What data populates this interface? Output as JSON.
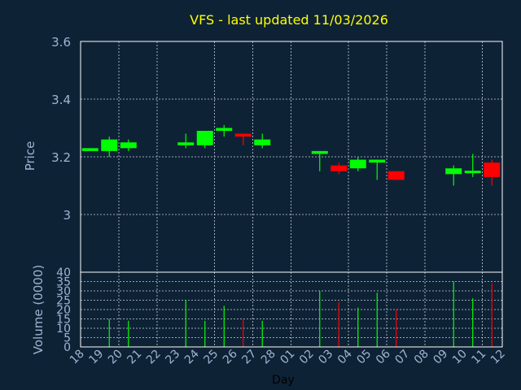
{
  "chart_data": {
    "type": "candlestick",
    "title": "VFS - last updated 11/03/2026",
    "price_panel": {
      "ylabel": "Price",
      "ylim": [
        2.8,
        3.6
      ],
      "yticks": [
        3,
        3.2,
        3.4,
        3.6
      ],
      "ytick_labels": [
        "3",
        "3.2",
        "3.4",
        "3.6"
      ],
      "grid": true
    },
    "volume_panel": {
      "ylabel": "Volume (0000)",
      "ylim": [
        0,
        40
      ],
      "yticks": [
        0,
        5,
        10,
        15,
        20,
        25,
        30,
        35,
        40
      ],
      "ytick_labels": [
        "0",
        "5",
        "10",
        "15",
        "20",
        "25",
        "30",
        "35",
        "40"
      ],
      "grid": true
    },
    "xlabel": "Day",
    "x_tick_labels": [
      "18",
      "19",
      "20",
      "21",
      "22",
      "23",
      "24",
      "25",
      "26",
      "27",
      "28",
      "01",
      "02",
      "03",
      "04",
      "05",
      "06",
      "07",
      "08",
      "09",
      "10",
      "11",
      "12"
    ],
    "candles": [
      {
        "day": "18",
        "open": 3.22,
        "close": 3.23,
        "high": 3.23,
        "low": 3.22,
        "volume": 0
      },
      {
        "day": "19",
        "open": 3.22,
        "close": 3.26,
        "high": 3.27,
        "low": 3.2,
        "volume": 15
      },
      {
        "day": "20",
        "open": 3.23,
        "close": 3.25,
        "high": 3.26,
        "low": 3.22,
        "volume": 14
      },
      {
        "day": "23",
        "open": 3.24,
        "close": 3.25,
        "high": 3.28,
        "low": 3.23,
        "volume": 25
      },
      {
        "day": "24",
        "open": 3.24,
        "close": 3.29,
        "high": 3.29,
        "low": 3.23,
        "volume": 14
      },
      {
        "day": "25",
        "open": 3.29,
        "close": 3.3,
        "high": 3.31,
        "low": 3.27,
        "volume": 22
      },
      {
        "day": "26",
        "open": 3.28,
        "close": 3.27,
        "high": 3.28,
        "low": 3.24,
        "volume": 15
      },
      {
        "day": "27",
        "open": 3.24,
        "close": 3.26,
        "high": 3.28,
        "low": 3.23,
        "volume": 14
      },
      {
        "day": "02",
        "open": 3.21,
        "close": 3.22,
        "high": 3.22,
        "low": 3.15,
        "volume": 30
      },
      {
        "day": "03",
        "open": 3.17,
        "close": 3.15,
        "high": 3.18,
        "low": 3.14,
        "volume": 24
      },
      {
        "day": "04",
        "open": 3.16,
        "close": 3.19,
        "high": 3.2,
        "low": 3.15,
        "volume": 21
      },
      {
        "day": "05",
        "open": 3.18,
        "close": 3.19,
        "high": 3.19,
        "low": 3.12,
        "volume": 29
      },
      {
        "day": "06",
        "open": 3.15,
        "close": 3.12,
        "high": 3.15,
        "low": 3.12,
        "volume": 20
      },
      {
        "day": "09",
        "open": 3.14,
        "close": 3.16,
        "high": 3.17,
        "low": 3.1,
        "volume": 35
      },
      {
        "day": "10",
        "open": 3.145,
        "close": 3.15,
        "high": 3.21,
        "low": 3.13,
        "volume": 26
      },
      {
        "day": "11",
        "open": 3.18,
        "close": 3.13,
        "high": 3.19,
        "low": 3.1,
        "volume": 34
      }
    ],
    "colors": {
      "background": "#0e2236",
      "up": "#00ff00",
      "down": "#ff0000",
      "grid": "#c8d0dc",
      "axis": "#9fb4d0",
      "title": "#ffff00",
      "axis_line": "#ffffff"
    }
  }
}
